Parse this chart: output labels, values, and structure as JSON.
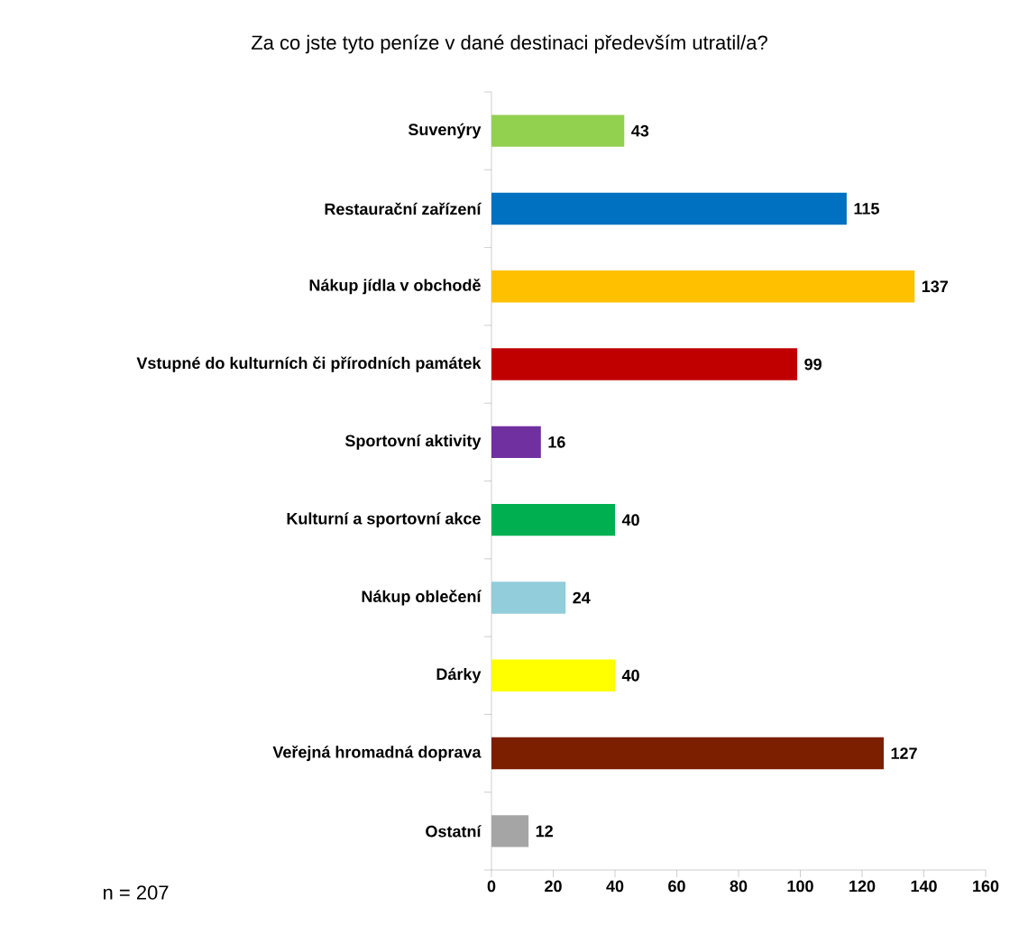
{
  "chart_data": {
    "type": "bar",
    "orientation": "horizontal",
    "title": "Za co jste tyto peníze v dané destinaci především utratil/a?",
    "categories": [
      "Suvenýry",
      "Restaurační zařízení",
      "Nákup jídla v obchodě",
      "Vstupné do kulturních či přírodních památek",
      "Sportovní aktivity",
      "Kulturní a sportovní akce",
      "Nákup oblečení",
      "Dárky",
      "Veřejná hromadná doprava",
      "Ostatní"
    ],
    "values": [
      43,
      115,
      137,
      99,
      16,
      40,
      24,
      40,
      127,
      12
    ],
    "colors": [
      "#92d050",
      "#0070c0",
      "#ffc000",
      "#c00000",
      "#7030a0",
      "#00b050",
      "#92cddc",
      "#ffff00",
      "#7b1f00",
      "#a5a5a5"
    ],
    "xlim": [
      0,
      160
    ],
    "xticks": [
      0,
      20,
      40,
      60,
      80,
      100,
      120,
      140,
      160
    ],
    "data_labels": true,
    "grid": false,
    "annotations": [
      "n = 207"
    ]
  }
}
